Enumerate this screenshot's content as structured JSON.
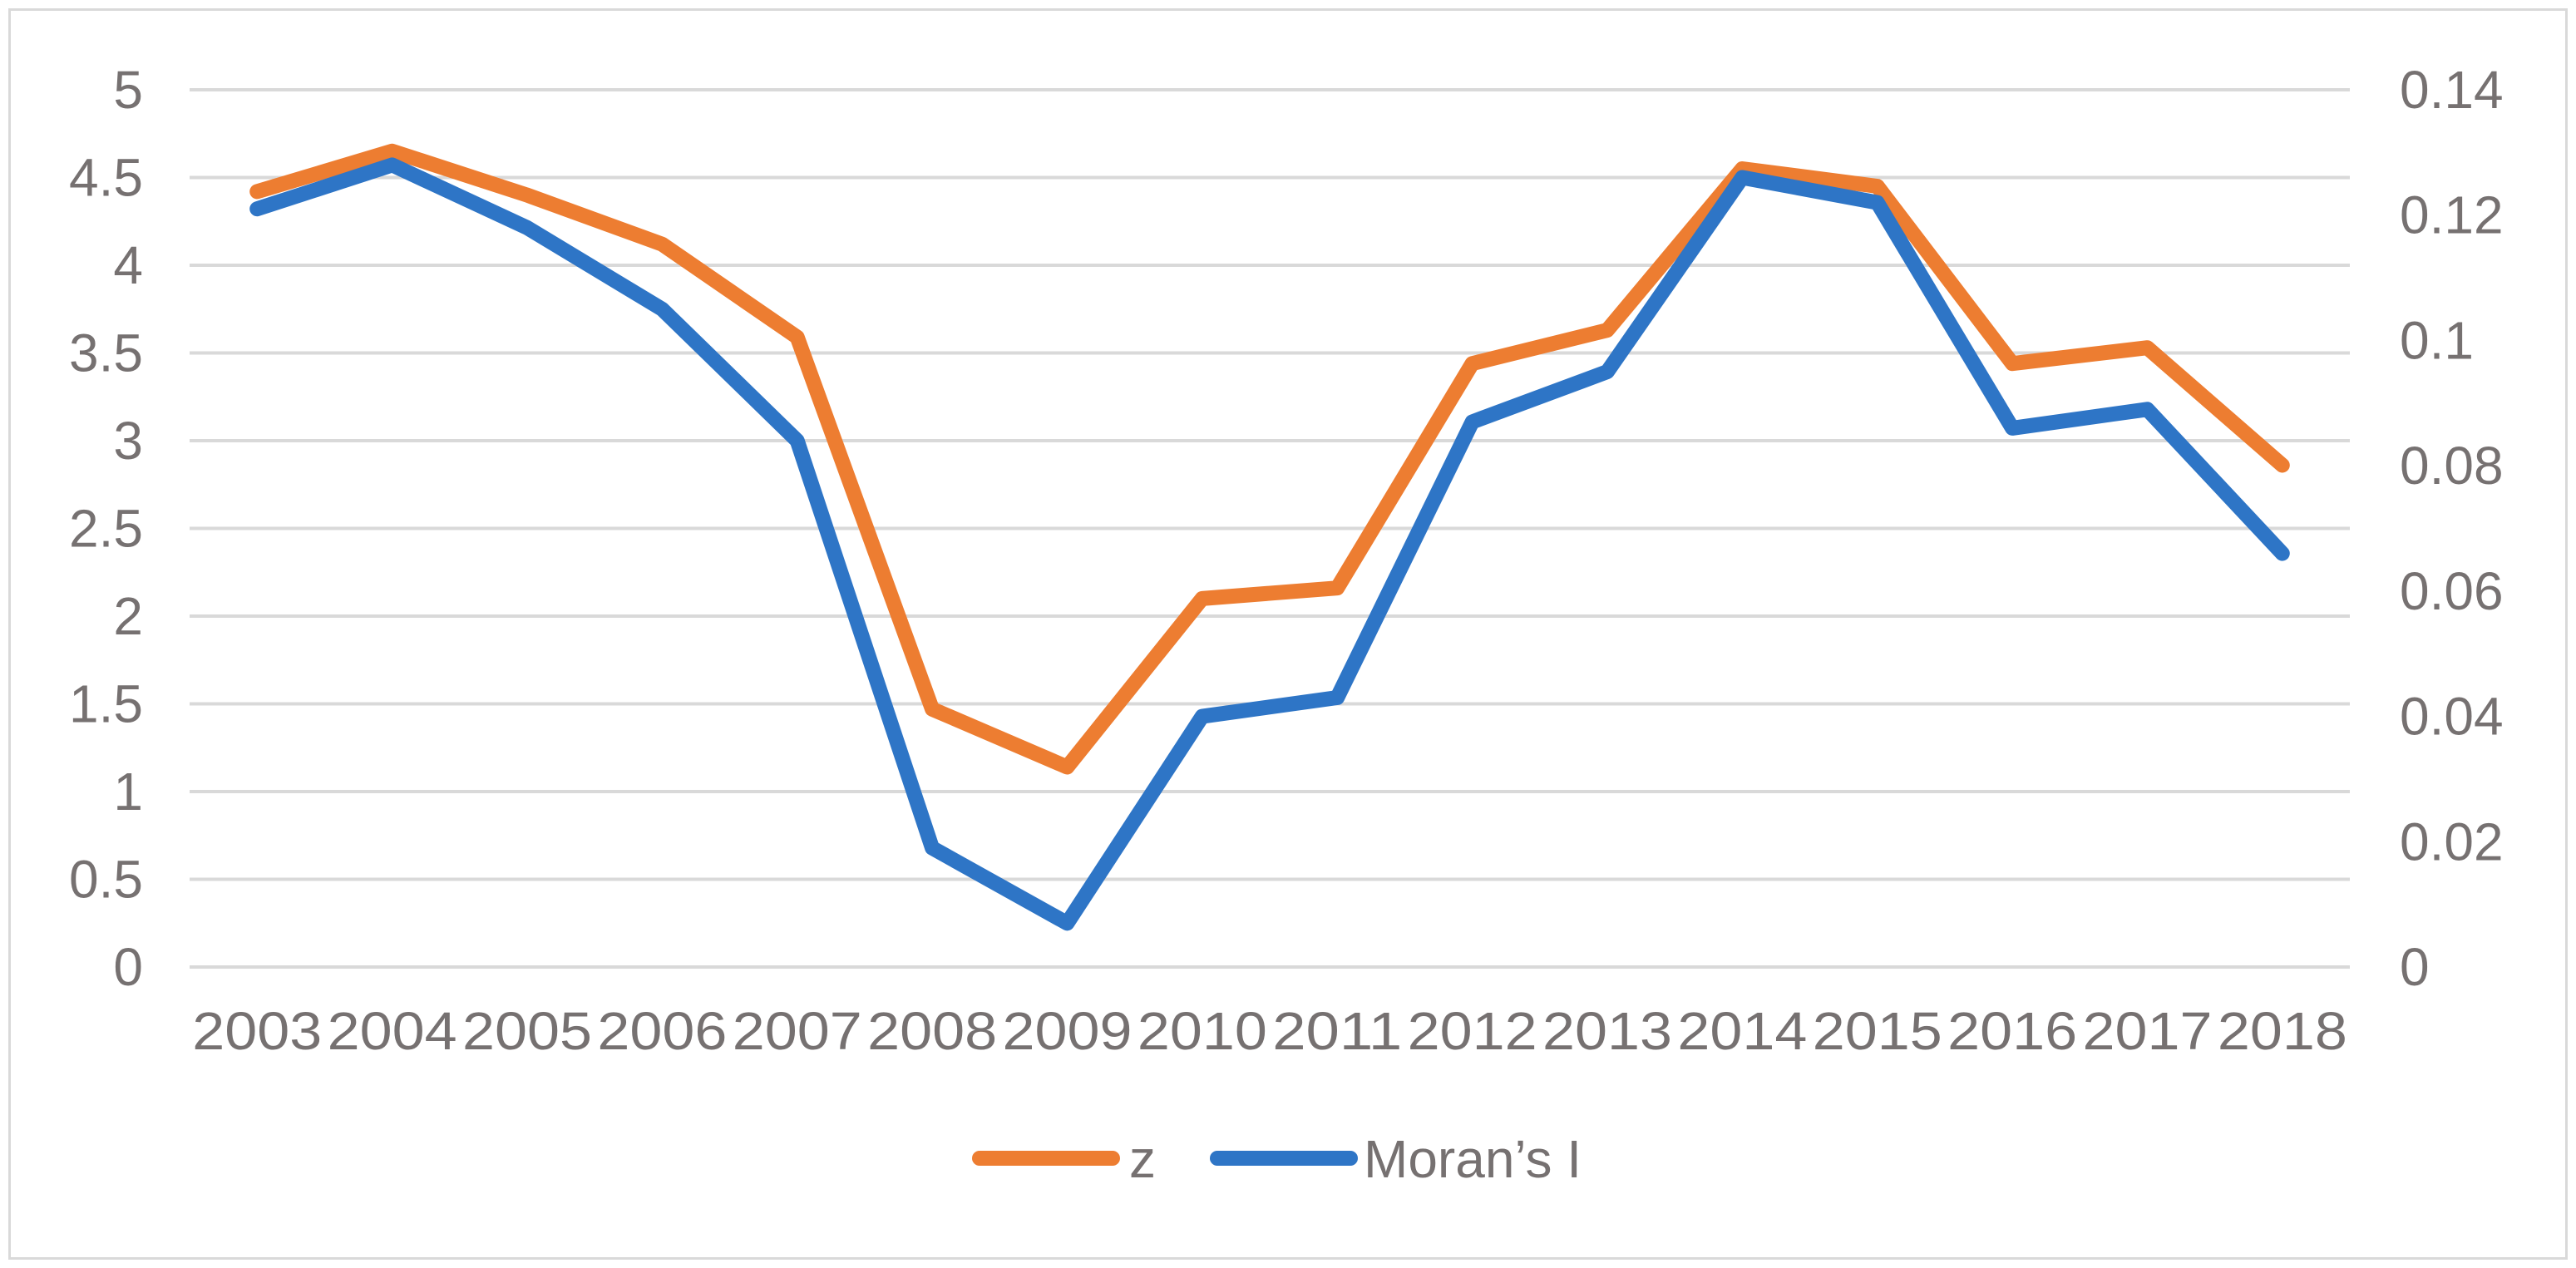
{
  "chart_data": {
    "type": "line",
    "categories": [
      "2003",
      "2004",
      "2005",
      "2006",
      "2007",
      "2008",
      "2009",
      "2010",
      "2011",
      "2012",
      "2013",
      "2014",
      "2015",
      "2016",
      "2017",
      "2018"
    ],
    "series": [
      {
        "name": "z",
        "axis": "left",
        "color": "#ed7d31",
        "values": [
          4.42,
          4.65,
          4.4,
          4.12,
          3.59,
          1.47,
          1.14,
          2.1,
          2.16,
          3.44,
          3.63,
          4.55,
          4.45,
          3.44,
          3.53,
          2.86
        ]
      },
      {
        "name": "Moran’s I",
        "axis": "right",
        "color": "#2e75c6",
        "values": [
          0.121,
          0.128,
          0.118,
          0.105,
          0.084,
          0.019,
          0.007,
          0.04,
          0.043,
          0.087,
          0.095,
          0.126,
          0.122,
          0.086,
          0.089,
          0.066
        ]
      }
    ],
    "y_left": {
      "min": 0,
      "max": 5,
      "ticks": [
        "0",
        "0.5",
        "1",
        "1.5",
        "2",
        "2.5",
        "3",
        "3.5",
        "4",
        "4.5",
        "5"
      ]
    },
    "y_right": {
      "min": 0,
      "max": 0.14,
      "ticks": [
        "0",
        "0.02",
        "0.04",
        "0.06",
        "0.08",
        "0.1",
        "0.12",
        "0.14"
      ]
    },
    "grid": true,
    "legend": "bottom",
    "colors": {
      "gridline": "#d9d9d9",
      "axis_text": "#767171",
      "border": "#d9d9d9"
    }
  }
}
